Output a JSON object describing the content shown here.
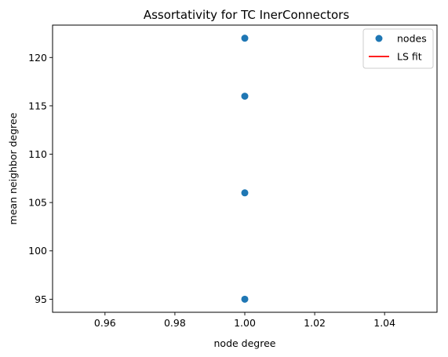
{
  "chart_data": {
    "type": "scatter",
    "title": "Assortativity for TC InerConnectors",
    "xlabel": "node degree",
    "ylabel": "mean neighbor degree",
    "xlim": [
      0.945,
      1.055
    ],
    "ylim": [
      93.65,
      123.35
    ],
    "xticks": [
      0.96,
      0.98,
      1.0,
      1.02,
      1.04
    ],
    "xtick_labels": [
      "0.96",
      "0.98",
      "1.00",
      "1.02",
      "1.04"
    ],
    "yticks": [
      95,
      100,
      105,
      110,
      115,
      120
    ],
    "ytick_labels": [
      "95",
      "100",
      "105",
      "110",
      "115",
      "120"
    ],
    "grid": false,
    "legend_position": "top-right",
    "series": [
      {
        "name": "nodes",
        "kind": "scatter",
        "color": "#1f77b4",
        "points": [
          {
            "x": 1.0,
            "y": 122
          },
          {
            "x": 1.0,
            "y": 116
          },
          {
            "x": 1.0,
            "y": 106
          },
          {
            "x": 1.0,
            "y": 95
          }
        ]
      },
      {
        "name": "LS fit",
        "kind": "line",
        "color": "#ff0000",
        "points": []
      }
    ]
  }
}
